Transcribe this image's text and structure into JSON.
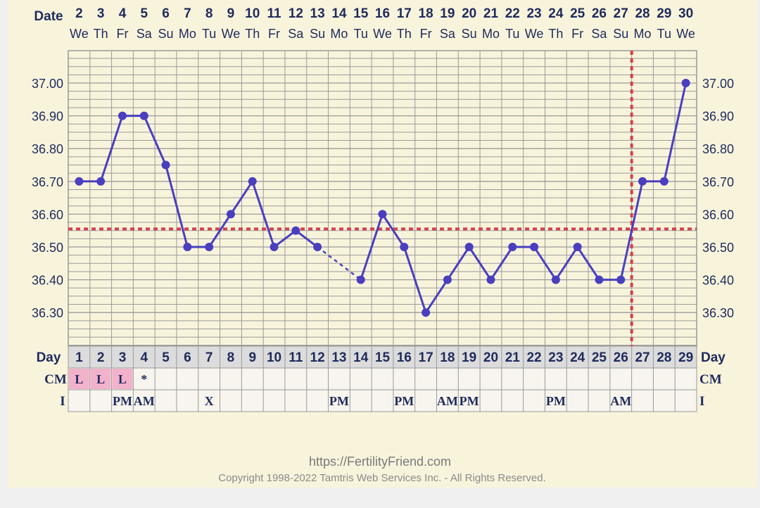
{
  "chart_data": {
    "type": "line",
    "date_label": "Date",
    "dates": [
      "2",
      "3",
      "4",
      "5",
      "6",
      "7",
      "8",
      "9",
      "10",
      "11",
      "12",
      "13",
      "14",
      "15",
      "16",
      "17",
      "18",
      "19",
      "20",
      "21",
      "22",
      "23",
      "24",
      "25",
      "26",
      "27",
      "28",
      "29",
      "30"
    ],
    "weekdays": [
      "We",
      "Th",
      "Fr",
      "Sa",
      "Su",
      "Mo",
      "Tu",
      "We",
      "Th",
      "Fr",
      "Sa",
      "Su",
      "Mo",
      "Tu",
      "We",
      "Th",
      "Fr",
      "Sa",
      "Su",
      "Mo",
      "Tu",
      "We",
      "Th",
      "Fr",
      "Sa",
      "Su",
      "Mo",
      "Tu",
      "We"
    ],
    "day_label": "Day",
    "days": [
      "1",
      "2",
      "3",
      "4",
      "5",
      "6",
      "7",
      "8",
      "9",
      "10",
      "11",
      "12",
      "13",
      "14",
      "15",
      "16",
      "17",
      "18",
      "19",
      "20",
      "21",
      "22",
      "23",
      "24",
      "25",
      "26",
      "27",
      "28",
      "29"
    ],
    "series": [
      {
        "values": [
          36.7,
          36.7,
          36.9,
          36.9,
          36.75,
          36.5,
          36.5,
          36.6,
          36.7,
          36.5,
          36.55,
          36.5,
          null,
          36.4,
          36.6,
          36.5,
          36.3,
          36.4,
          36.5,
          36.4,
          36.5,
          36.5,
          36.4,
          36.5,
          36.4,
          36.4,
          36.7,
          36.7,
          37.0
        ]
      }
    ],
    "dashed_gap_between_days": [
      12,
      14
    ],
    "y_ticks": [
      "37.00",
      "36.90",
      "36.80",
      "36.70",
      "36.60",
      "36.50",
      "36.40",
      "36.30"
    ],
    "ylim": [
      36.2,
      37.1
    ],
    "coverline": 36.555,
    "ovulation_day": 26,
    "cm_label": "CM",
    "cm": [
      "L",
      "L",
      "L",
      "*",
      "",
      "",
      "",
      "",
      "",
      "",
      "",
      "",
      "",
      "",
      "",
      "",
      "",
      "",
      "",
      "",
      "",
      "",
      "",
      "",
      "",
      "",
      "",
      "",
      ""
    ],
    "i_label": "I",
    "intercourse": [
      "",
      "",
      "PM",
      "AM",
      "",
      "",
      "X",
      "",
      "",
      "",
      "",
      "",
      "PM",
      "",
      "",
      "PM",
      "",
      "AM",
      "PM",
      "",
      "",
      "",
      "PM",
      "",
      "",
      "AM",
      "",
      "",
      ""
    ],
    "grid": true,
    "colors": {
      "line": "#4a3fbf",
      "coverline": "#d6404a",
      "grid": "#9a9a9a",
      "background": "#f8f4dc",
      "text": "#1f2a5c",
      "cm_highlight": "#f3b2cc"
    }
  },
  "footer": {
    "url": "https://FertilityFriend.com",
    "copyright": "Copyright 1998-2022 Tamtris Web Services Inc. - All Rights Reserved."
  }
}
